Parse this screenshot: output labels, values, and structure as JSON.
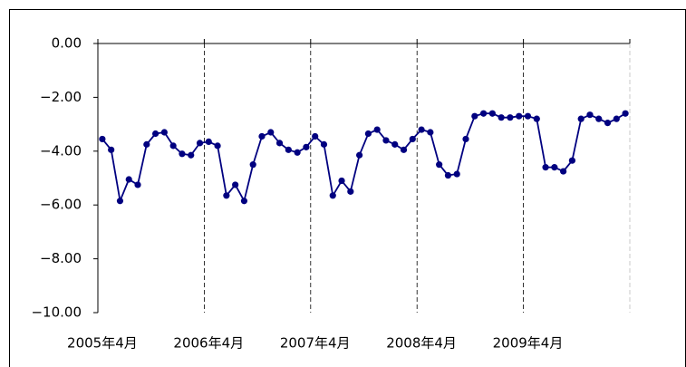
{
  "chart_data": {
    "type": "line",
    "categories": [
      "2005年4月",
      null,
      null,
      null,
      null,
      null,
      null,
      null,
      null,
      null,
      null,
      null,
      "2006年4月",
      null,
      null,
      null,
      null,
      null,
      null,
      null,
      null,
      null,
      null,
      null,
      "2007年4月",
      null,
      null,
      null,
      null,
      null,
      null,
      null,
      null,
      null,
      null,
      null,
      "2008年4月",
      null,
      null,
      null,
      null,
      null,
      null,
      null,
      null,
      null,
      null,
      null,
      "2009年4月",
      null,
      null,
      null,
      null,
      null,
      null,
      null,
      null,
      null,
      null,
      null
    ],
    "series": [
      {
        "color": "#000080",
        "values": [
          -3.55,
          -3.95,
          -5.85,
          -5.05,
          -5.25,
          -3.75,
          -3.35,
          -3.3,
          -3.8,
          -4.1,
          -4.15,
          -3.7,
          -3.65,
          -3.8,
          -5.65,
          -5.25,
          -5.85,
          -4.5,
          -3.45,
          -3.3,
          -3.7,
          -3.95,
          -4.05,
          -3.85,
          -3.45,
          -3.75,
          -5.65,
          -5.1,
          -5.5,
          -4.15,
          -3.35,
          -3.2,
          -3.6,
          -3.75,
          -3.95,
          -3.55,
          -3.2,
          -3.3,
          -4.5,
          -4.9,
          -4.85,
          -3.55,
          -2.7,
          -2.6,
          -2.6,
          -2.75,
          -2.75,
          -2.7,
          -2.7,
          -2.8,
          -4.6,
          -4.6,
          -4.75,
          -4.35,
          -2.8,
          -2.65,
          -2.8,
          -2.95,
          -2.8,
          -2.6
        ]
      }
    ],
    "ylim": [
      -10,
      0
    ],
    "yticks": [
      {
        "value": 0,
        "label": "0.00"
      },
      {
        "value": -2,
        "label": "−2.00"
      },
      {
        "value": -4,
        "label": "−4.00"
      },
      {
        "value": -6,
        "label": "−6.00"
      },
      {
        "value": -8,
        "label": "−8.00"
      },
      {
        "value": -10,
        "label": "−10.00"
      }
    ],
    "xgrid": true
  }
}
